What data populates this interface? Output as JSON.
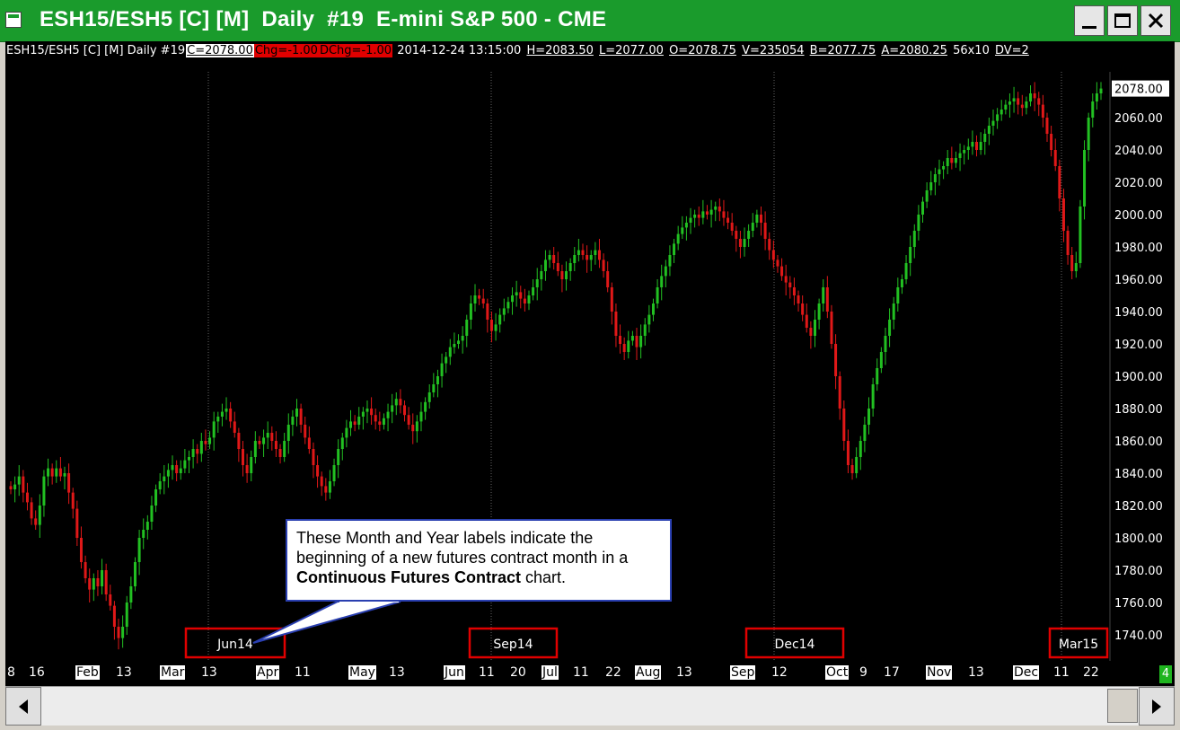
{
  "window": {
    "title": "ESH15/ESH5 [C] [M]  Daily  #19  E-mini S&P 500 - CME"
  },
  "infobar": {
    "symbol": "ESH15/ESH5 [C] [M]  Daily  #19",
    "close": "C=2078.00",
    "chg": "Chg=-1.00",
    "dchg": "DChg=-1.00",
    "datetime": "2014-12-24 13:15:00",
    "high": "H=2083.50",
    "low": "L=2077.00",
    "open": "O=2078.75",
    "volume": "V=235054",
    "bid": "B=2077.75",
    "ask": "A=2080.25",
    "size": "56x10",
    "dv": "DV=2"
  },
  "callout": {
    "line1": "These Month and Year labels indicate the",
    "line2": "beginning of a new futures contract month in a",
    "bold": "Continuous Futures Contract",
    "tail": " chart."
  },
  "page_badge": "4",
  "colors": {
    "up": "#22c022",
    "down": "#e01818",
    "frame": "#1a9b2c",
    "highlight_box": "#e00000",
    "callout_border": "#2a3fb0"
  },
  "chart_data": {
    "type": "candlestick",
    "ylim": [
      1730,
      2090
    ],
    "y_ticks": [
      "2078.00",
      "2060.00",
      "2040.00",
      "2020.00",
      "2000.00",
      "1980.00",
      "1960.00",
      "1940.00",
      "1920.00",
      "1900.00",
      "1880.00",
      "1860.00",
      "1840.00",
      "1820.00",
      "1800.00",
      "1780.00",
      "1760.00",
      "1740.00"
    ],
    "last_price": "2078.00",
    "x_labels": [
      {
        "text": "8",
        "month": false
      },
      {
        "text": "16",
        "month": false
      },
      {
        "text": "Feb",
        "month": true
      },
      {
        "text": "13",
        "month": false
      },
      {
        "text": "Mar",
        "month": true
      },
      {
        "text": "13",
        "month": false
      },
      {
        "text": "Apr",
        "month": true
      },
      {
        "text": "11",
        "month": false
      },
      {
        "text": "May",
        "month": true
      },
      {
        "text": "13",
        "month": false
      },
      {
        "text": "Jun",
        "month": true
      },
      {
        "text": "11",
        "month": false
      },
      {
        "text": "20",
        "month": false
      },
      {
        "text": "Jul",
        "month": true
      },
      {
        "text": "11",
        "month": false
      },
      {
        "text": "22",
        "month": false
      },
      {
        "text": "Aug",
        "month": true
      },
      {
        "text": "13",
        "month": false
      },
      {
        "text": "Sep",
        "month": true
      },
      {
        "text": "12",
        "month": false
      },
      {
        "text": "Oct",
        "month": true
      },
      {
        "text": "9",
        "month": false
      },
      {
        "text": "17",
        "month": false
      },
      {
        "text": "Nov",
        "month": true
      },
      {
        "text": "13",
        "month": false
      },
      {
        "text": "Dec",
        "month": true
      },
      {
        "text": "11",
        "month": false
      },
      {
        "text": "22",
        "month": false
      }
    ],
    "contract_labels": [
      "Jun14",
      "Sep14",
      "Dec14",
      "Mar15"
    ],
    "closes": [
      1830,
      1833,
      1838,
      1828,
      1822,
      1812,
      1808,
      1820,
      1838,
      1843,
      1838,
      1843,
      1838,
      1840,
      1828,
      1818,
      1800,
      1785,
      1775,
      1768,
      1775,
      1770,
      1780,
      1765,
      1758,
      1745,
      1738,
      1745,
      1760,
      1770,
      1785,
      1800,
      1805,
      1810,
      1820,
      1830,
      1835,
      1838,
      1842,
      1845,
      1840,
      1843,
      1848,
      1850,
      1855,
      1852,
      1860,
      1858,
      1862,
      1872,
      1875,
      1878,
      1880,
      1872,
      1865,
      1855,
      1845,
      1840,
      1850,
      1860,
      1858,
      1862,
      1865,
      1860,
      1855,
      1850,
      1860,
      1870,
      1875,
      1880,
      1870,
      1862,
      1855,
      1845,
      1838,
      1832,
      1828,
      1835,
      1845,
      1855,
      1862,
      1868,
      1872,
      1870,
      1875,
      1878,
      1880,
      1876,
      1872,
      1870,
      1874,
      1878,
      1882,
      1886,
      1882,
      1876,
      1870,
      1866,
      1872,
      1878,
      1884,
      1890,
      1895,
      1900,
      1908,
      1912,
      1918,
      1920,
      1922,
      1925,
      1935,
      1945,
      1950,
      1948,
      1945,
      1935,
      1928,
      1932,
      1938,
      1942,
      1946,
      1950,
      1952,
      1948,
      1945,
      1950,
      1955,
      1960,
      1965,
      1972,
      1975,
      1970,
      1965,
      1960,
      1965,
      1970,
      1975,
      1978,
      1975,
      1972,
      1975,
      1978,
      1972,
      1965,
      1955,
      1940,
      1925,
      1920,
      1915,
      1922,
      1925,
      1918,
      1925,
      1932,
      1938,
      1945,
      1955,
      1962,
      1968,
      1975,
      1982,
      1988,
      1992,
      1995,
      1998,
      2000,
      1998,
      2002,
      2000,
      2003,
      2005,
      2002,
      1998,
      1995,
      1990,
      1985,
      1980,
      1985,
      1990,
      1995,
      2000,
      1995,
      1985,
      1978,
      1972,
      1968,
      1962,
      1958,
      1955,
      1950,
      1945,
      1938,
      1930,
      1925,
      1935,
      1945,
      1955,
      1940,
      1920,
      1900,
      1880,
      1860,
      1845,
      1840,
      1850,
      1860,
      1870,
      1880,
      1895,
      1905,
      1915,
      1925,
      1935,
      1945,
      1955,
      1960,
      1970,
      1980,
      1990,
      2000,
      2008,
      2015,
      2020,
      2025,
      2028,
      2030,
      2035,
      2032,
      2035,
      2038,
      2040,
      2042,
      2045,
      2040,
      2045,
      2050,
      2055,
      2058,
      2062,
      2065,
      2068,
      2070,
      2072,
      2068,
      2066,
      2070,
      2075,
      2072,
      2068,
      2060,
      2050,
      2040,
      2030,
      2010,
      1990,
      1975,
      1965,
      1970,
      2005,
      2040,
      2060,
      2070,
      2075,
      2078
    ]
  }
}
